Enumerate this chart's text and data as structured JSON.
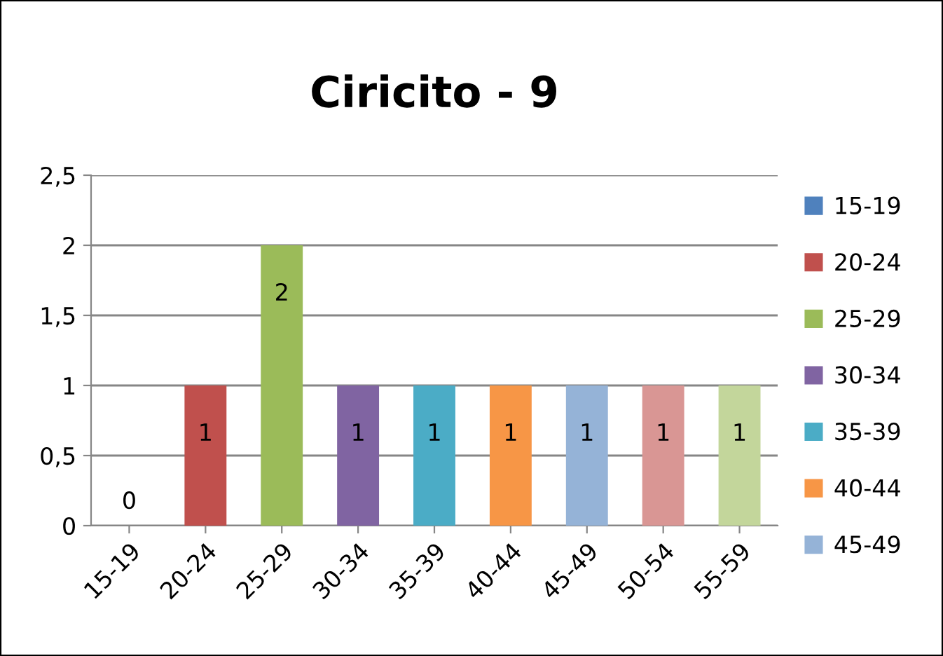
{
  "chart_data": {
    "type": "bar",
    "title": "Ciricito - 9",
    "categories": [
      "15-19",
      "20-24",
      "25-29",
      "30-34",
      "35-39",
      "40-44",
      "45-49",
      "50-54",
      "55-59"
    ],
    "series": [
      {
        "name": "15-19",
        "color": "#4f81bd",
        "values": [
          0,
          null,
          null,
          null,
          null,
          null,
          null,
          null,
          null
        ]
      },
      {
        "name": "20-24",
        "color": "#c0504d",
        "values": [
          null,
          1,
          null,
          null,
          null,
          null,
          null,
          null,
          null
        ]
      },
      {
        "name": "25-29",
        "color": "#9bbb59",
        "values": [
          null,
          null,
          2,
          null,
          null,
          null,
          null,
          null,
          null
        ]
      },
      {
        "name": "30-34",
        "color": "#8064a2",
        "values": [
          null,
          null,
          null,
          1,
          null,
          null,
          null,
          null,
          null
        ]
      },
      {
        "name": "35-39",
        "color": "#4bacc6",
        "values": [
          null,
          null,
          null,
          null,
          1,
          null,
          null,
          null,
          null
        ]
      },
      {
        "name": "40-44",
        "color": "#f79646",
        "values": [
          null,
          null,
          null,
          null,
          null,
          1,
          null,
          null,
          null
        ]
      },
      {
        "name": "45-49",
        "color": "#95b3d7",
        "values": [
          null,
          null,
          null,
          null,
          null,
          null,
          1,
          null,
          null
        ]
      },
      {
        "color": "#d99694",
        "values": [
          null,
          null,
          null,
          null,
          null,
          null,
          null,
          1,
          null
        ]
      },
      {
        "color": "#c3d69b",
        "values": [
          null,
          null,
          null,
          null,
          null,
          null,
          null,
          null,
          1
        ]
      }
    ],
    "ylim": [
      0,
      2.5
    ],
    "yticks": [
      0,
      {
        "value": 0.5,
        "label": "0,5"
      },
      1,
      {
        "value": 1.5,
        "label": "1,5"
      },
      2,
      {
        "value": 2.5,
        "label": "2,5"
      }
    ],
    "grid": "y",
    "legend": "right",
    "data_labels": true
  }
}
